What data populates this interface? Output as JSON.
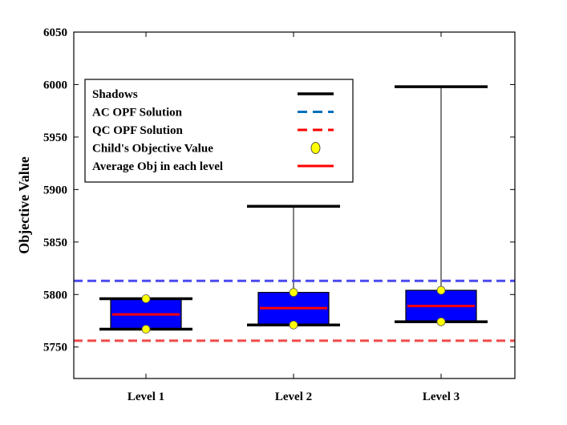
{
  "chart_data": {
    "type": "box",
    "ylabel": "Objective Value",
    "xlabel": "",
    "ylim": [
      5720,
      6050
    ],
    "yticks": [
      5750,
      5800,
      5850,
      5900,
      5950,
      6000,
      6050
    ],
    "categories": [
      "Level 1",
      "Level 2",
      "Level 3"
    ],
    "boxes": [
      {
        "category": "Level 1",
        "box_low": 5767,
        "box_high": 5796,
        "whisker_low": 5767,
        "whisker_high": 5796,
        "average": 5781,
        "child_values": [
          5767,
          5796
        ]
      },
      {
        "category": "Level 2",
        "box_low": 5771,
        "box_high": 5802,
        "whisker_low": 5771,
        "whisker_high": 5884,
        "average": 5787,
        "child_values": [
          5771,
          5802
        ]
      },
      {
        "category": "Level 3",
        "box_low": 5774,
        "box_high": 5804,
        "whisker_low": 5774,
        "whisker_high": 5998,
        "average": 5789,
        "child_values": [
          5774,
          5804
        ]
      }
    ],
    "reference_lines": [
      {
        "name": "AC OPF Solution",
        "value": 5813,
        "color": "#4a4af0"
      },
      {
        "name": "QC OPF Solution",
        "value": 5756,
        "color": "#f04a4a"
      }
    ],
    "legend": {
      "position": "upper-left",
      "entries": [
        {
          "label": "Shadows",
          "marker": "black-solid-line"
        },
        {
          "label": "AC OPF Solution",
          "marker": "blue-dashed-line"
        },
        {
          "label": "QC OPF Solution",
          "marker": "red-dashed-line"
        },
        {
          "label": "Child's Objective Value",
          "marker": "yellow-circle"
        },
        {
          "label": "Average Obj in each level",
          "marker": "red-solid-line"
        }
      ]
    },
    "colors": {
      "box_fill": "#0000ff",
      "box_edge": "#000000",
      "shadow": "#000000",
      "average": "#ff0000",
      "child_marker": "#ffff00",
      "ac_line_legend": "#0072bd",
      "qc_line_legend": "#ff0000"
    }
  }
}
